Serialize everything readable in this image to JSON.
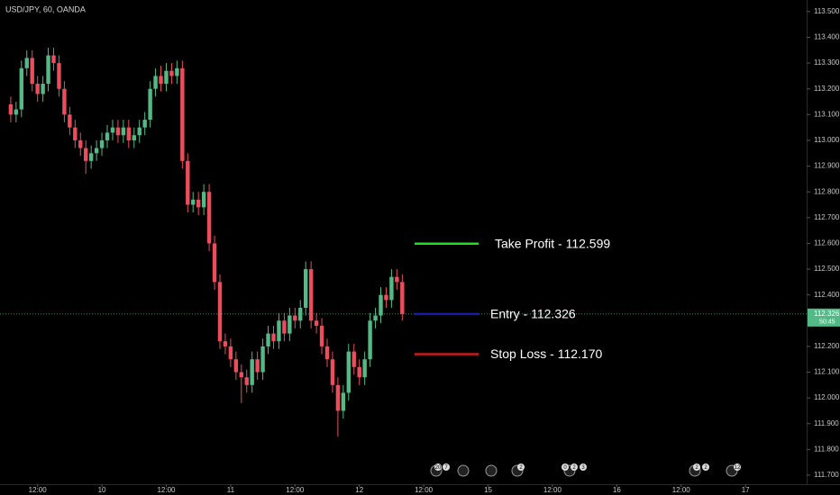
{
  "chart_data": {
    "type": "candlestick",
    "title": "USD/JPY, 60, OANDA",
    "up_color": "#53b987",
    "down_color": "#eb4d5c",
    "open": [
      113.14,
      113.1,
      113.12,
      113.28,
      113.32,
      113.22,
      113.18,
      113.22,
      113.33,
      113.3,
      113.2,
      113.1,
      113.05,
      113.0,
      112.97,
      112.92,
      112.95,
      112.97,
      113.0,
      113.03,
      113.05,
      113.02,
      113.05,
      113.0,
      113.02,
      113.05,
      113.08,
      113.2,
      113.25,
      113.22,
      113.27,
      113.25,
      113.28,
      112.92,
      112.75,
      112.77,
      112.74,
      112.8,
      112.6,
      112.45,
      112.22,
      112.2,
      112.15,
      112.1,
      112.08,
      112.05,
      112.15,
      112.1,
      112.2,
      112.25,
      112.22,
      112.3,
      112.25,
      112.32,
      112.3,
      112.35,
      112.5,
      112.3,
      112.28,
      112.2,
      112.15,
      112.05,
      111.95,
      112.02,
      112.18,
      112.12,
      112.08,
      112.15,
      112.3,
      112.32,
      112.4,
      112.38,
      112.47,
      112.45
    ],
    "high": [
      113.17,
      113.15,
      113.31,
      113.35,
      113.35,
      113.25,
      113.25,
      113.36,
      113.36,
      113.33,
      113.23,
      113.13,
      113.08,
      113.03,
      113.0,
      112.98,
      113.0,
      113.03,
      113.06,
      113.08,
      113.08,
      113.08,
      113.08,
      113.05,
      113.08,
      113.11,
      113.23,
      113.28,
      113.29,
      113.3,
      113.3,
      113.31,
      113.31,
      112.95,
      112.8,
      112.8,
      112.83,
      112.83,
      112.63,
      112.48,
      112.25,
      112.23,
      112.18,
      112.13,
      112.11,
      112.18,
      112.18,
      112.23,
      112.28,
      112.28,
      112.33,
      112.33,
      112.35,
      112.35,
      112.38,
      112.53,
      112.53,
      112.33,
      112.31,
      112.23,
      112.18,
      112.08,
      112.05,
      112.21,
      112.21,
      112.15,
      112.18,
      112.33,
      112.35,
      112.43,
      112.43,
      112.5,
      112.5,
      112.48
    ],
    "low": [
      113.07,
      113.07,
      113.09,
      113.25,
      113.19,
      113.15,
      113.15,
      113.19,
      113.27,
      113.17,
      113.07,
      113.02,
      112.97,
      112.94,
      112.87,
      112.89,
      112.92,
      112.94,
      112.97,
      113.0,
      112.99,
      112.99,
      112.97,
      112.97,
      112.99,
      113.02,
      113.05,
      113.17,
      113.19,
      113.19,
      113.22,
      113.22,
      112.89,
      112.72,
      112.72,
      112.71,
      112.71,
      112.57,
      112.42,
      112.19,
      112.17,
      112.12,
      112.07,
      111.98,
      112.02,
      112.02,
      112.07,
      112.07,
      112.17,
      112.19,
      112.19,
      112.22,
      112.22,
      112.27,
      112.27,
      112.32,
      112.27,
      112.25,
      112.17,
      112.12,
      112.02,
      111.85,
      111.92,
      111.99,
      112.09,
      112.05,
      112.05,
      112.12,
      112.27,
      112.29,
      112.35,
      112.35,
      112.42,
      112.3
    ],
    "close": [
      113.1,
      113.12,
      113.28,
      113.32,
      113.22,
      113.18,
      113.22,
      113.33,
      113.3,
      113.2,
      113.1,
      113.05,
      113.0,
      112.97,
      112.92,
      112.95,
      112.97,
      113.0,
      113.03,
      113.05,
      113.02,
      113.05,
      113.0,
      113.02,
      113.05,
      113.08,
      113.2,
      113.25,
      113.22,
      113.27,
      113.25,
      113.28,
      112.92,
      112.75,
      112.77,
      112.74,
      112.8,
      112.6,
      112.45,
      112.22,
      112.2,
      112.15,
      112.1,
      112.08,
      112.05,
      112.15,
      112.1,
      112.2,
      112.25,
      112.22,
      112.3,
      112.25,
      112.32,
      112.3,
      112.35,
      112.5,
      112.3,
      112.28,
      112.2,
      112.15,
      112.05,
      111.95,
      112.02,
      112.18,
      112.12,
      112.08,
      112.15,
      112.3,
      112.32,
      112.4,
      112.38,
      112.47,
      112.45,
      112.326
    ],
    "xlim": [
      -2,
      148.4
    ],
    "xticks": [
      {
        "value": 5,
        "label": "12:00"
      },
      {
        "value": 17,
        "label": "10"
      },
      {
        "value": 29,
        "label": "12:00"
      },
      {
        "value": 41,
        "label": "11"
      },
      {
        "value": 53,
        "label": "12:00"
      },
      {
        "value": 65,
        "label": "12"
      },
      {
        "value": 77,
        "label": "12:00"
      },
      {
        "value": 89,
        "label": "15"
      },
      {
        "value": 101,
        "label": "12:00"
      },
      {
        "value": 113,
        "label": "16"
      },
      {
        "value": 125,
        "label": "12:00"
      },
      {
        "value": 137,
        "label": "17"
      }
    ],
    "ylim": [
      111.665,
      113.545
    ],
    "yticks": [
      {
        "value": 113.5,
        "label": "113.500"
      },
      {
        "value": 113.4,
        "label": "113.400"
      },
      {
        "value": 113.3,
        "label": "113.300"
      },
      {
        "value": 113.2,
        "label": "113.200"
      },
      {
        "value": 113.1,
        "label": "113.100"
      },
      {
        "value": 113.0,
        "label": "113.000"
      },
      {
        "value": 112.9,
        "label": "112.900"
      },
      {
        "value": 112.8,
        "label": "112.800"
      },
      {
        "value": 112.7,
        "label": "112.700"
      },
      {
        "value": 112.6,
        "label": "112.600"
      },
      {
        "value": 112.5,
        "label": "112.500"
      },
      {
        "value": 112.4,
        "label": "112.400"
      },
      {
        "value": 112.2,
        "label": "112.200"
      },
      {
        "value": 112.1,
        "label": "112.100"
      },
      {
        "value": 112.0,
        "label": "112.000"
      },
      {
        "value": 111.9,
        "label": "111.900"
      },
      {
        "value": 111.8,
        "label": "111.800"
      },
      {
        "value": 111.7,
        "label": "111.700"
      }
    ],
    "levels": [
      {
        "label": "Take Profit - 112.599",
        "value": 112.599,
        "color": "#22dd22"
      },
      {
        "label": "Entry - 112.326",
        "value": 112.326,
        "color": "#1a1aa8"
      },
      {
        "label": "Stop Loss - 112.170",
        "value": 112.17,
        "color": "#cc1a1a"
      }
    ],
    "last_price": {
      "value": 112.326,
      "label": "112.326"
    },
    "countdown": "50:45",
    "event_badges": [
      "20",
      "7",
      "2",
      "0",
      "2",
      "3",
      "2",
      "2",
      "12"
    ]
  }
}
